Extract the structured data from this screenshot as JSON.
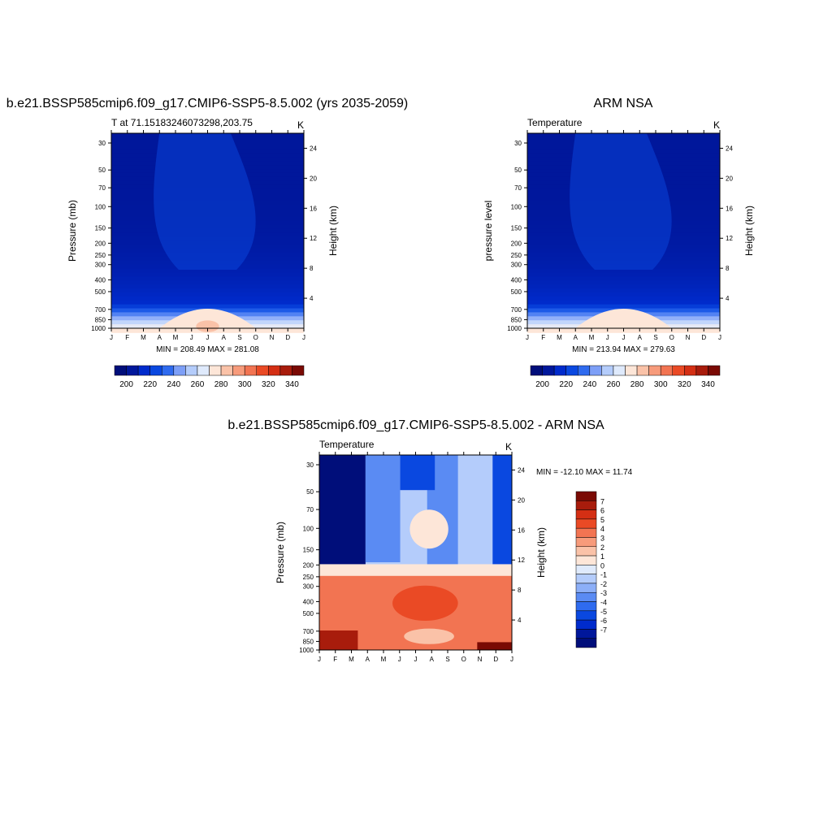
{
  "colors": {
    "temp_levels": [
      "#000e7a",
      "#00179b",
      "#002bcc",
      "#0a48e0",
      "#2f6bef",
      "#7d9ff7",
      "#b4ccfb",
      "#dfeafc",
      "#fde6d8",
      "#fac2a8",
      "#f79b7b",
      "#f27452",
      "#ea4a25",
      "#d42f14",
      "#a81c0c",
      "#7a0a04"
    ],
    "diff_levels": [
      "#000e7a",
      "#00179b",
      "#002bcc",
      "#0a48e0",
      "#2f6bef",
      "#5a8bf3",
      "#8caff8",
      "#b4ccfb",
      "#dfeafc",
      "#fde6d8",
      "#fac2a8",
      "#f79b7b",
      "#f27452",
      "#ea4a25",
      "#d42f14",
      "#a81c0c",
      "#7a0a04"
    ]
  },
  "panels": {
    "model": {
      "title": "b.e21.BSSP585cmip6.f09_g17.CMIP6-SSP5-8.5.002 (yrs 2035-2059)",
      "subtitle": "T at 71.15183246073298,203.75",
      "units": "K",
      "ylabel": "Pressure (mb)",
      "y2label": "Height (km)",
      "minmax": "MIN = 208.49 MAX = 281.08"
    },
    "obs": {
      "title": "ARM NSA",
      "subtitle": "Temperature",
      "units": "K",
      "ylabel": "pressure level",
      "y2label": "Height (km)",
      "minmax": "MIN = 213.94 MAX = 279.63"
    },
    "diff": {
      "title": "b.e21.BSSP585cmip6.f09_g17.CMIP6-SSP5-8.5.002 - ARM NSA",
      "subtitle": "Temperature",
      "units": "K",
      "ylabel": "Pressure (mb)",
      "y2label": "Height (km)",
      "minmax": "MIN = -12.10 MAX =  11.74"
    }
  },
  "chart_data": [
    {
      "type": "heatmap",
      "title": "b.e21.BSSP585cmip6.f09_g17.CMIP6-SSP5-8.5.002 (yrs 2035-2059)",
      "x": [
        "J",
        "F",
        "M",
        "A",
        "M",
        "J",
        "J",
        "A",
        "S",
        "O",
        "N",
        "D",
        "J"
      ],
      "y_ticks": [
        30,
        50,
        70,
        100,
        150,
        200,
        250,
        300,
        400,
        500,
        700,
        850,
        1000
      ],
      "y2_ticks": [
        4,
        8,
        12,
        16,
        20,
        24
      ],
      "ylabel": "Pressure (mb)",
      "y2label": "Height (km)",
      "units": "K",
      "min": 208.49,
      "max": 281.08,
      "colorbar_labels": [
        200,
        220,
        240,
        260,
        280,
        300,
        320,
        340
      ]
    },
    {
      "type": "heatmap",
      "title": "ARM NSA",
      "x": [
        "J",
        "F",
        "M",
        "A",
        "M",
        "J",
        "J",
        "A",
        "S",
        "O",
        "N",
        "D",
        "J"
      ],
      "y_ticks": [
        30,
        50,
        70,
        100,
        150,
        200,
        250,
        300,
        400,
        500,
        700,
        850,
        1000
      ],
      "y2_ticks": [
        4,
        8,
        12,
        16,
        20,
        24
      ],
      "ylabel": "pressure level",
      "y2label": "Height (km)",
      "units": "K",
      "min": 213.94,
      "max": 279.63,
      "colorbar_labels": [
        200,
        220,
        240,
        260,
        280,
        300,
        320,
        340
      ]
    },
    {
      "type": "heatmap",
      "title": "b.e21.BSSP585cmip6.f09_g17.CMIP6-SSP5-8.5.002 - ARM NSA",
      "x": [
        "J",
        "F",
        "M",
        "A",
        "M",
        "J",
        "J",
        "A",
        "S",
        "O",
        "N",
        "D",
        "J"
      ],
      "y_ticks": [
        30,
        50,
        70,
        100,
        150,
        200,
        250,
        300,
        400,
        500,
        700,
        850,
        1000
      ],
      "y2_ticks": [
        4,
        8,
        12,
        16,
        20,
        24
      ],
      "ylabel": "Pressure (mb)",
      "y2label": "Height (km)",
      "units": "K",
      "min": -12.1,
      "max": 11.74,
      "colorbar_labels": [
        7,
        6,
        5,
        4,
        3,
        2,
        1,
        0,
        -1,
        -2,
        -3,
        -4,
        -5,
        -6,
        -7
      ]
    }
  ]
}
